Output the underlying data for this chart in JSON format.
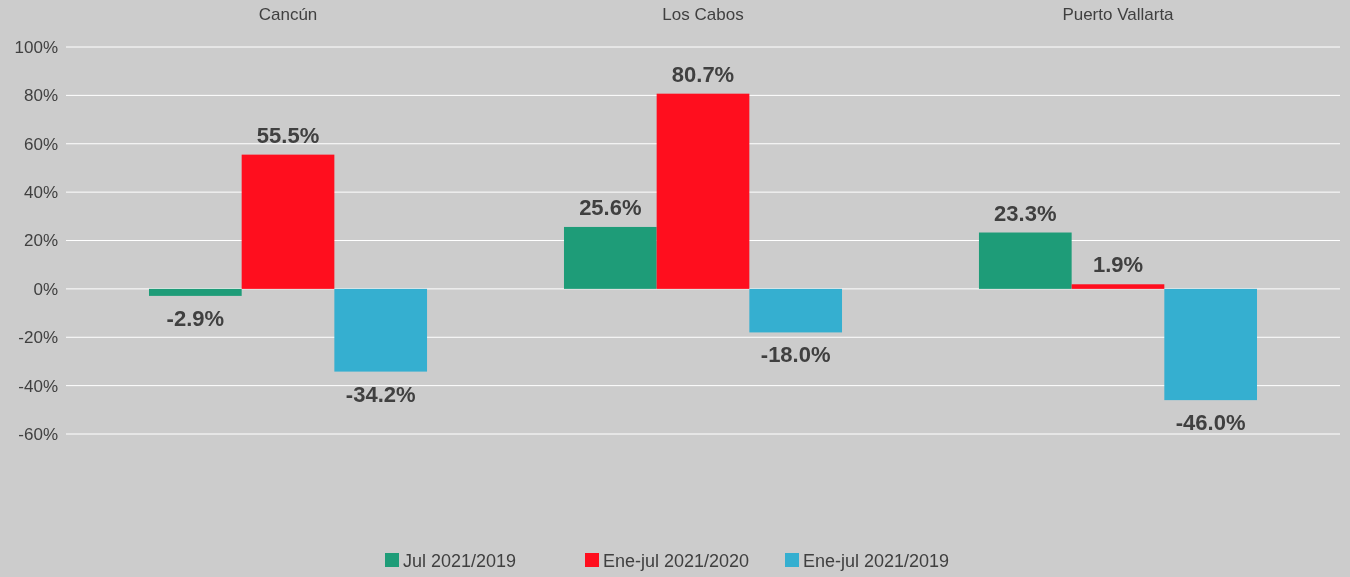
{
  "chart_data": {
    "type": "bar",
    "categories": [
      "Cancún",
      "Los Cabos",
      "Puerto Vallarta"
    ],
    "series": [
      {
        "name": "Jul 2021/2019",
        "color": "#1e9c78",
        "values": [
          -2.9,
          25.6,
          23.3
        ],
        "value_labels": [
          "-2.9%",
          "25.6%",
          "23.3%"
        ]
      },
      {
        "name": "Ene-jul 2021/2020",
        "color": "#ff0e1e",
        "values": [
          55.5,
          80.7,
          1.9
        ],
        "value_labels": [
          "55.5%",
          "80.7%",
          "1.9%"
        ]
      },
      {
        "name": "Ene-jul 2021/2019",
        "color": "#35afd0",
        "values": [
          -34.2,
          -18.0,
          -46.0
        ],
        "value_labels": [
          "-34.2%",
          "-18.0%",
          "-46.0%"
        ]
      }
    ],
    "ylim": [
      -60,
      100
    ],
    "yticks": [
      {
        "value": -60,
        "label": "-60%"
      },
      {
        "value": -40,
        "label": "-40%"
      },
      {
        "value": -20,
        "label": "-20%"
      },
      {
        "value": 0,
        "label": "0%"
      },
      {
        "value": 20,
        "label": "20%"
      },
      {
        "value": 40,
        "label": "40%"
      },
      {
        "value": 60,
        "label": "60%"
      },
      {
        "value": 80,
        "label": "80%"
      },
      {
        "value": 100,
        "label": "100%"
      }
    ],
    "grid": "y",
    "legend": "bottom"
  }
}
